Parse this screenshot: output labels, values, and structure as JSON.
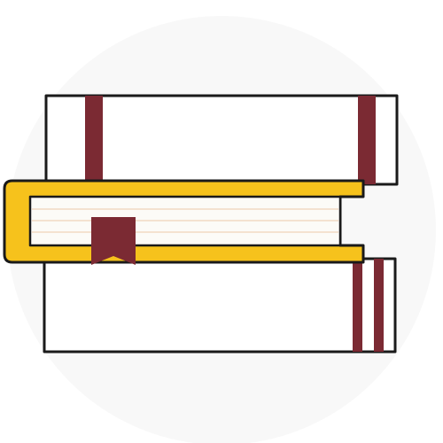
{
  "illustration": {
    "subject": "stack-of-books-icon",
    "colors": {
      "background": "#ffffff",
      "circle": "#f8f8f8",
      "outline": "#1a1a1a",
      "book_cover": "#ffffff",
      "ribbon_band": "#7b2a33",
      "hardcover": "#f6c21c",
      "page_edges": "#fcfbf7",
      "page_lines": "#f1d9c4",
      "bookmark": "#7b2a33"
    }
  }
}
